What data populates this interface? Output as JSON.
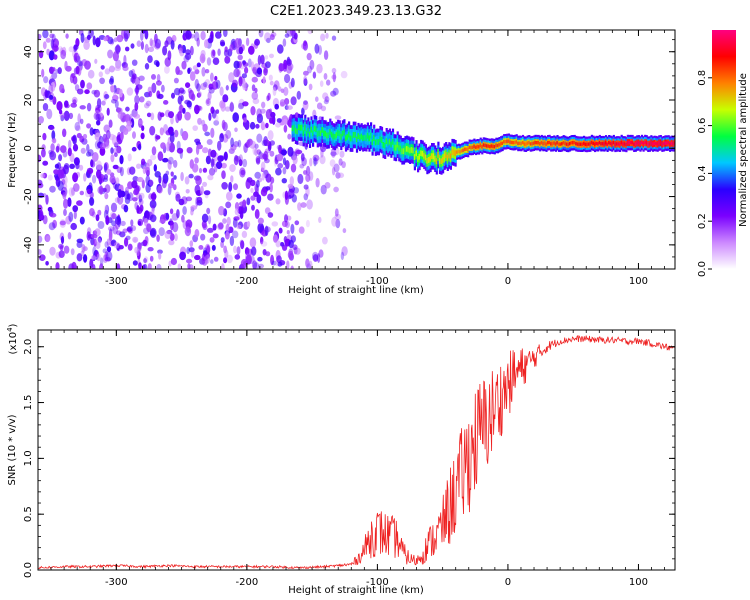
{
  "figure": {
    "title": "C2E1.2023.349.23.13.G32"
  },
  "chart_data": [
    {
      "type": "heatmap",
      "xlabel": "Height of straight line (km)",
      "ylabel": "Frequency (Hz)",
      "xlim": [
        -360,
        128
      ],
      "ylim": [
        -50,
        49
      ],
      "xticks": [
        -300,
        -200,
        -100,
        0,
        100
      ],
      "xtick_labels": [
        "-300",
        "-200",
        "-100",
        "0",
        "100"
      ],
      "yticks": [
        -40,
        -20,
        0,
        20,
        40
      ],
      "ytick_labels": [
        "-40",
        "-20",
        "0",
        "20",
        "40"
      ],
      "grid": false,
      "colorbar": {
        "label": "Normalized spectral amplitude",
        "range": [
          0.0,
          1.0
        ],
        "ticks": [
          0.0,
          0.2,
          0.4,
          0.6,
          0.8
        ],
        "tick_labels": [
          "0.0",
          "0.2",
          "0.4",
          "0.6",
          "0.8"
        ],
        "colormap": [
          "#ffffff",
          "#cc88ff",
          "#7a00ff",
          "#2a00ff",
          "#00c8ff",
          "#00ff40",
          "#c8ff00",
          "#ff8000",
          "#ff0000",
          "#ff0080"
        ]
      },
      "noise_region_x": [
        -360,
        -125
      ],
      "signal_track": {
        "x": [
          -165,
          -150,
          -135,
          -120,
          -105,
          -90,
          -80,
          -70,
          -60,
          -50,
          -40,
          -30,
          -20,
          -10,
          0,
          10,
          20,
          40,
          60,
          80,
          100,
          128
        ],
        "y": [
          8,
          7,
          6,
          5,
          4,
          2,
          0,
          -3,
          -4,
          -4,
          -2,
          0,
          1,
          1,
          3,
          2,
          2,
          2,
          2,
          2,
          2,
          2
        ],
        "amplitude": [
          0.45,
          0.45,
          0.45,
          0.45,
          0.45,
          0.45,
          0.5,
          0.55,
          0.6,
          0.6,
          0.65,
          0.7,
          0.75,
          0.75,
          0.7,
          0.7,
          0.72,
          0.75,
          0.78,
          0.82,
          0.85,
          0.85
        ]
      }
    },
    {
      "type": "line",
      "xlabel": "Height of straight line (km)",
      "ylabel": "SNR (10 * v/v)",
      "y_multiplier": "(x10",
      "y_multiplier_exp": "4",
      "y_multiplier_close": ")",
      "xlim": [
        -360,
        128
      ],
      "ylim": [
        0.0,
        2.15
      ],
      "xticks": [
        -300,
        -200,
        -100,
        0,
        100
      ],
      "xtick_labels": [
        "-300",
        "-200",
        "-100",
        "0",
        "100"
      ],
      "yticks": [
        0.0,
        0.5,
        1.0,
        1.5,
        2.0
      ],
      "ytick_labels": [
        "0.0",
        "0.5",
        "1.0",
        "1.5",
        "2.0"
      ],
      "grid": false,
      "series": [
        {
          "color": "#ee2222",
          "x": [
            -360,
            -340,
            -320,
            -300,
            -280,
            -260,
            -240,
            -220,
            -200,
            -180,
            -160,
            -140,
            -130,
            -120,
            -115,
            -110,
            -105,
            -100,
            -95,
            -90,
            -85,
            -80,
            -75,
            -70,
            -65,
            -60,
            -55,
            -50,
            -45,
            -40,
            -35,
            -30,
            -25,
            -20,
            -15,
            -10,
            -5,
            0,
            5,
            10,
            15,
            20,
            25,
            30,
            40,
            50,
            60,
            70,
            80,
            90,
            100,
            110,
            120,
            128
          ],
          "y": [
            0.02,
            0.03,
            0.03,
            0.04,
            0.03,
            0.04,
            0.03,
            0.03,
            0.03,
            0.03,
            0.02,
            0.03,
            0.04,
            0.05,
            0.1,
            0.18,
            0.3,
            0.35,
            0.32,
            0.3,
            0.28,
            0.15,
            0.1,
            0.08,
            0.15,
            0.25,
            0.3,
            0.4,
            0.55,
            0.7,
            0.85,
            1.0,
            1.15,
            1.25,
            1.35,
            1.45,
            1.55,
            1.65,
            1.75,
            1.8,
            1.85,
            1.9,
            1.95,
            2.0,
            2.05,
            2.07,
            2.07,
            2.06,
            2.06,
            2.05,
            2.05,
            2.03,
            2.0,
            1.98
          ],
          "noise_amplitude": [
            0.01,
            0.01,
            0.01,
            0.01,
            0.01,
            0.01,
            0.01,
            0.01,
            0.01,
            0.01,
            0.01,
            0.01,
            0.01,
            0.02,
            0.05,
            0.1,
            0.2,
            0.22,
            0.22,
            0.2,
            0.18,
            0.1,
            0.06,
            0.05,
            0.1,
            0.15,
            0.2,
            0.25,
            0.35,
            0.4,
            0.45,
            0.5,
            0.5,
            0.5,
            0.45,
            0.4,
            0.35,
            0.3,
            0.25,
            0.2,
            0.15,
            0.1,
            0.08,
            0.05,
            0.03,
            0.03,
            0.03,
            0.03,
            0.03,
            0.03,
            0.03,
            0.03,
            0.03,
            0.03
          ]
        }
      ]
    }
  ]
}
